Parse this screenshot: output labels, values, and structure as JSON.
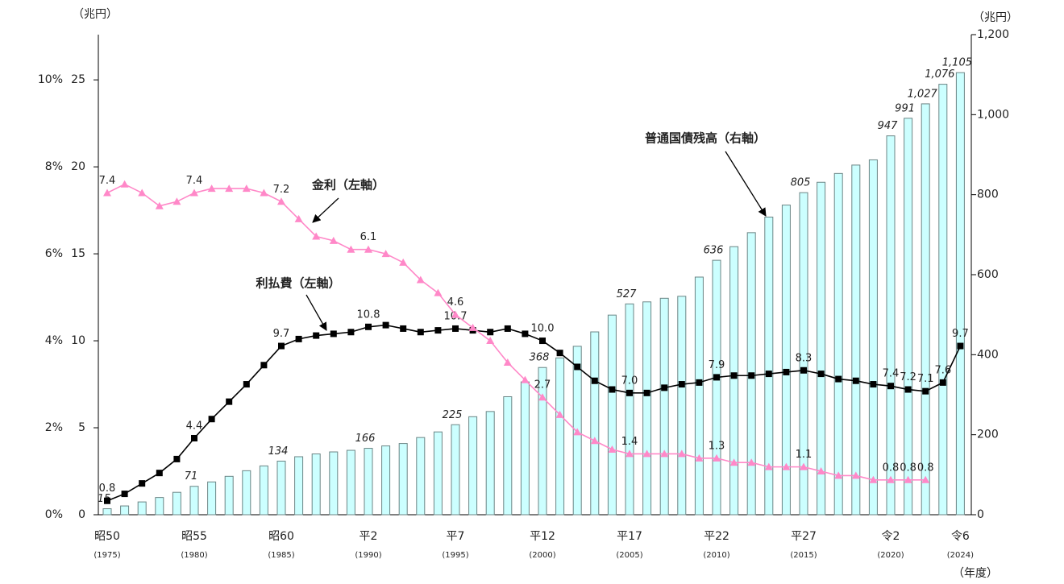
{
  "chart_data": {
    "type": "bar-line",
    "y_unit_label": "（兆円）",
    "y2_unit_label": "（兆円）",
    "x_label": "（年度）",
    "categories": [
      "昭50",
      null,
      null,
      null,
      null,
      "昭55",
      null,
      null,
      null,
      null,
      "昭60",
      null,
      null,
      null,
      null,
      "平2",
      null,
      null,
      null,
      null,
      "平7",
      null,
      null,
      null,
      null,
      "平12",
      null,
      null,
      null,
      null,
      "平17",
      null,
      null,
      null,
      null,
      "平22",
      null,
      null,
      null,
      null,
      "平27",
      null,
      null,
      null,
      null,
      "令2",
      null,
      null,
      null,
      "令6"
    ],
    "category_years": [
      "(1975)",
      null,
      null,
      null,
      null,
      "(1980)",
      null,
      null,
      null,
      null,
      "(1985)",
      null,
      null,
      null,
      null,
      "(1990)",
      null,
      null,
      null,
      null,
      "(1995)",
      null,
      null,
      null,
      null,
      "(2000)",
      null,
      null,
      null,
      null,
      "(2005)",
      null,
      null,
      null,
      null,
      "(2010)",
      null,
      null,
      null,
      null,
      "(2015)",
      null,
      null,
      null,
      null,
      "(2020)",
      null,
      null,
      null,
      "(2024)"
    ],
    "ylim": [
      0,
      27.6
    ],
    "yticks": [
      0,
      5,
      10,
      15,
      20,
      25
    ],
    "y2lim": [
      0,
      1200
    ],
    "y2ticks": [
      0,
      200,
      400,
      600,
      800,
      {
        "value": 1000,
        "label": "1,000"
      },
      {
        "value": 1200,
        "label": "1,200"
      }
    ],
    "y3lim": [
      0,
      11.04
    ],
    "y3ticks": [
      {
        "value": 0,
        "label": "0%"
      },
      {
        "value": 2,
        "label": "2%"
      },
      {
        "value": 4,
        "label": "4%"
      },
      {
        "value": 6,
        "label": "6%"
      },
      {
        "value": 8,
        "label": "8%"
      },
      {
        "value": 10,
        "label": "10%"
      }
    ],
    "series": [
      {
        "name": "普通国債残高（右軸）",
        "kind": "bar",
        "axis": "y2",
        "color": "#ccffff",
        "edge": "#6b8585",
        "values": [
          15,
          22,
          32,
          43,
          56,
          71,
          82,
          96,
          110,
          122,
          134,
          145,
          152,
          157,
          161,
          166,
          172,
          178,
          193,
          207,
          225,
          245,
          258,
          295,
          332,
          368,
          392,
          421,
          457,
          499,
          527,
          532,
          541,
          546,
          594,
          636,
          670,
          705,
          744,
          774,
          805,
          831,
          853,
          874,
          887,
          947,
          991,
          1027,
          1076,
          1105
        ],
        "value_labels": [
          "15",
          null,
          null,
          null,
          null,
          "71",
          null,
          null,
          null,
          null,
          "134",
          null,
          null,
          null,
          null,
          "166",
          null,
          null,
          null,
          null,
          "225",
          null,
          null,
          null,
          null,
          "368",
          null,
          null,
          null,
          null,
          "527",
          null,
          null,
          null,
          null,
          "636",
          null,
          null,
          null,
          null,
          "805",
          null,
          null,
          null,
          null,
          "947",
          "991",
          "1,027",
          "1,076",
          "1,105"
        ]
      },
      {
        "name": "利払費（左軸）",
        "kind": "line",
        "axis": "y",
        "color": "#000000",
        "marker": "square",
        "values": [
          0.8,
          1.2,
          1.8,
          2.4,
          3.2,
          4.4,
          5.5,
          6.5,
          7.5,
          8.6,
          9.7,
          10.1,
          10.3,
          10.4,
          10.5,
          10.8,
          10.9,
          10.7,
          10.5,
          10.6,
          10.7,
          10.6,
          10.5,
          10.7,
          10.4,
          10.0,
          9.3,
          8.5,
          7.7,
          7.2,
          7.0,
          7.0,
          7.3,
          7.5,
          7.6,
          7.9,
          8.0,
          8.0,
          8.1,
          8.2,
          8.3,
          8.1,
          7.8,
          7.7,
          7.5,
          7.4,
          7.2,
          7.1,
          7.6,
          9.7
        ],
        "value_labels": [
          "0.8",
          null,
          null,
          null,
          null,
          "4.4",
          null,
          null,
          null,
          null,
          "9.7",
          null,
          null,
          null,
          null,
          "10.8",
          null,
          null,
          null,
          null,
          "10.7",
          null,
          null,
          null,
          null,
          "10.0",
          null,
          null,
          null,
          null,
          "7.0",
          null,
          null,
          null,
          null,
          "7.9",
          null,
          null,
          null,
          null,
          "8.3",
          null,
          null,
          null,
          null,
          "7.4",
          "7.2",
          "7.1",
          "7.6",
          "9.7"
        ]
      },
      {
        "name": "金利（左軸）",
        "kind": "line",
        "axis": "y3",
        "color": "#ff88c8",
        "marker": "triangle",
        "values": [
          7.4,
          7.6,
          7.4,
          7.1,
          7.2,
          7.4,
          7.5,
          7.5,
          7.5,
          7.4,
          7.2,
          6.8,
          6.4,
          6.3,
          6.1,
          6.1,
          6.0,
          5.8,
          5.4,
          5.1,
          4.6,
          4.3,
          4.0,
          3.5,
          3.1,
          2.7,
          2.3,
          1.9,
          1.7,
          1.5,
          1.4,
          1.4,
          1.4,
          1.4,
          1.3,
          1.3,
          1.2,
          1.2,
          1.1,
          1.1,
          1.1,
          1.0,
          0.9,
          0.9,
          0.8,
          0.8,
          0.8,
          0.8,
          null,
          null
        ],
        "value_labels": [
          "7.4",
          null,
          null,
          null,
          null,
          "7.4",
          null,
          null,
          null,
          null,
          "7.2",
          null,
          null,
          null,
          null,
          "6.1",
          null,
          null,
          null,
          null,
          "4.6",
          null,
          null,
          null,
          null,
          "2.7",
          null,
          null,
          null,
          null,
          "1.4",
          null,
          null,
          null,
          null,
          "1.3",
          null,
          null,
          null,
          null,
          "1.1",
          null,
          null,
          null,
          null,
          "0.8",
          "0.8",
          "0.8",
          null,
          null
        ]
      }
    ]
  }
}
